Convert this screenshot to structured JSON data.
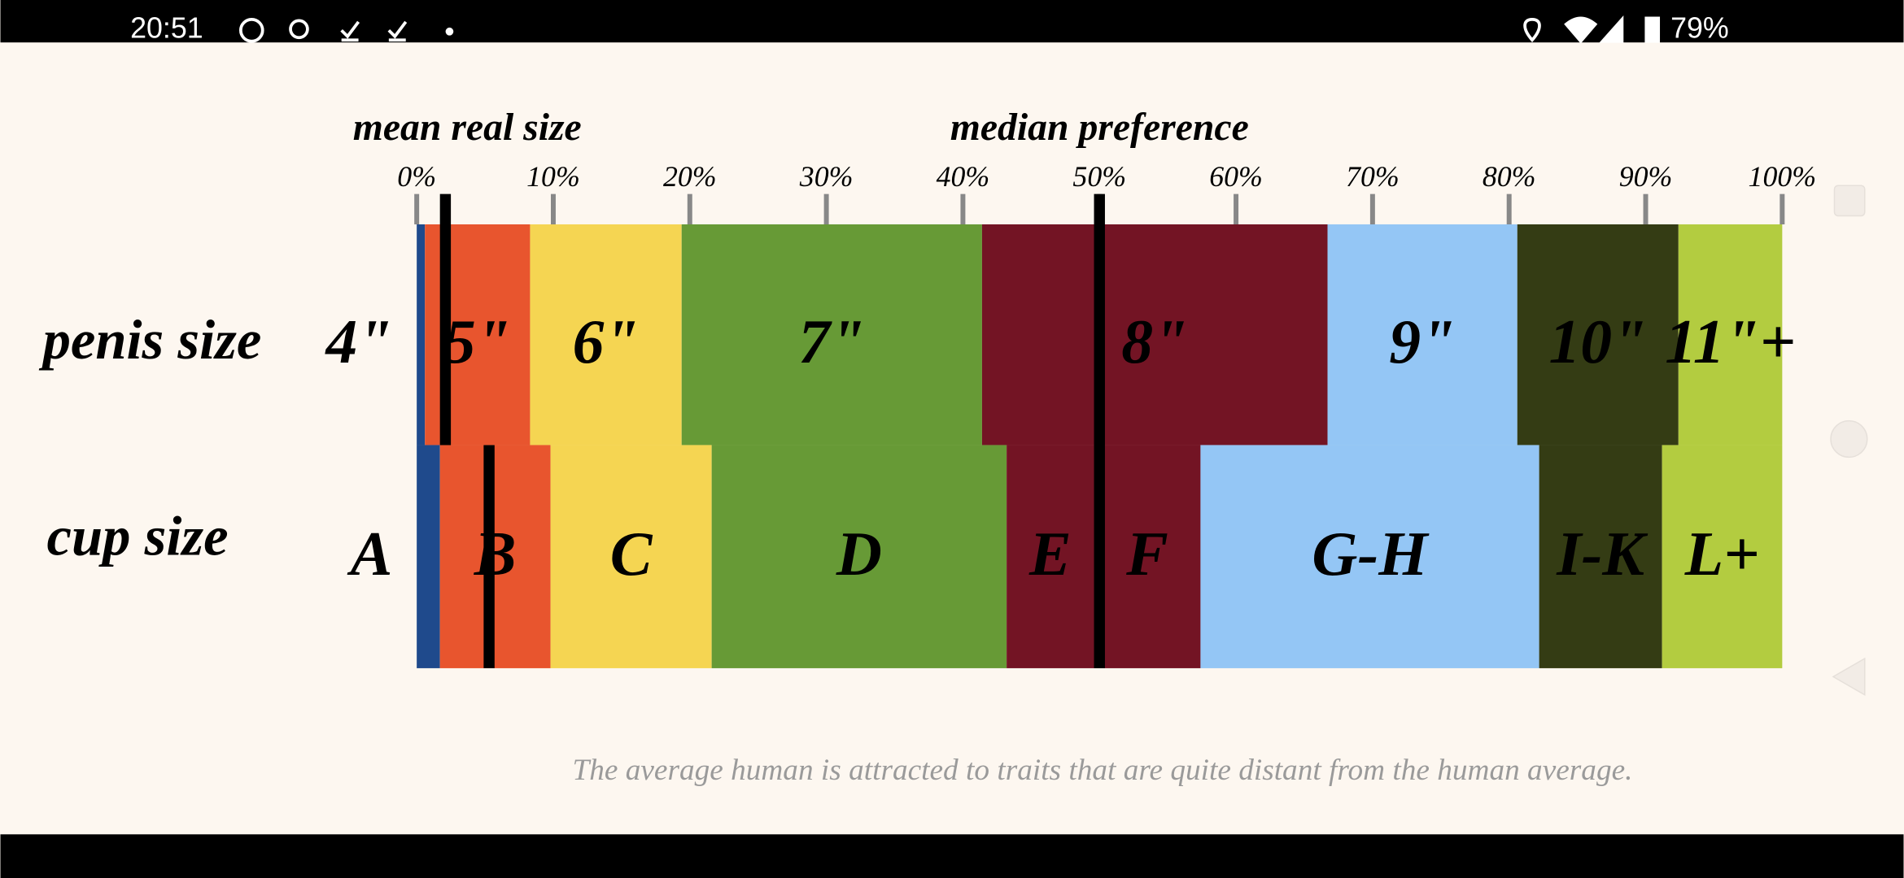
{
  "status_bar": {
    "time": "20:51",
    "battery": "79%"
  },
  "chart_data": {
    "type": "stacked-bar-100",
    "caption": "The average human is attracted to traits that are quite distant from the human average.",
    "xlim": [
      0,
      100
    ],
    "xticks": [
      {
        "value": 0,
        "label": "0%"
      },
      {
        "value": 10,
        "label": "10%"
      },
      {
        "value": 20,
        "label": "20%"
      },
      {
        "value": 30,
        "label": "30%"
      },
      {
        "value": 40,
        "label": "40%"
      },
      {
        "value": 50,
        "label": "50%"
      },
      {
        "value": 60,
        "label": "60%"
      },
      {
        "value": 70,
        "label": "70%"
      },
      {
        "value": 80,
        "label": "80%"
      },
      {
        "value": 90,
        "label": "90%"
      },
      {
        "value": 100,
        "label": "100%"
      }
    ],
    "rows": [
      {
        "name": "penis size",
        "segments": [
          {
            "label": "4\"",
            "value": 0.6,
            "color": "#1f4a8c"
          },
          {
            "label": "5\"",
            "value": 7.7,
            "color": "#e8552e"
          },
          {
            "label": "6\"",
            "value": 11.1,
            "color": "#f5d552"
          },
          {
            "label": "7\"",
            "value": 22.0,
            "color": "#679a36"
          },
          {
            "label": "8\"",
            "value": 25.3,
            "color": "#731424"
          },
          {
            "label": "9\"",
            "value": 13.9,
            "color": "#94c6f5"
          },
          {
            "label": "10\"",
            "value": 11.8,
            "color": "#343c14"
          },
          {
            "label": "11\"+",
            "value": 7.6,
            "color": "#b3cc40"
          }
        ]
      },
      {
        "name": "cup size",
        "segments": [
          {
            "label": "A",
            "value": 1.7,
            "color": "#1f4a8c"
          },
          {
            "label": "B",
            "value": 8.1,
            "color": "#e8552e"
          },
          {
            "label": "C",
            "value": 11.8,
            "color": "#f5d552"
          },
          {
            "label": "D",
            "value": 21.6,
            "color": "#679a36"
          },
          {
            "label": "E",
            "value": 6.4,
            "color": "#731424"
          },
          {
            "label": "F",
            "value": 7.8,
            "color": "#731424"
          },
          {
            "label": "G-H",
            "value": 24.8,
            "color": "#94c6f5"
          },
          {
            "label": "I-K",
            "value": 9.0,
            "color": "#343c14"
          },
          {
            "label": "L+",
            "value": 8.8,
            "color": "#b3cc40"
          }
        ]
      }
    ],
    "markers": [
      {
        "label": "mean real size",
        "values": [
          2.1,
          5.3
        ]
      },
      {
        "label": "median preference",
        "values": [
          50
        ]
      }
    ]
  }
}
